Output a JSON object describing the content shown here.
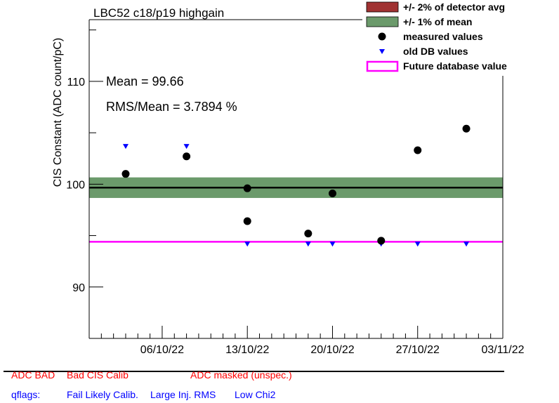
{
  "chart_data": {
    "type": "scatter",
    "title": "LBC52 c18/p19 highgain",
    "ylabel": "CIS Constant (ADC count/pC)",
    "xlabel": "",
    "ylim": [
      85.0,
      116.0
    ],
    "y_ticks": [
      90,
      100,
      110
    ],
    "x_ticks": [
      "06/10/22",
      "13/10/22",
      "20/10/22",
      "27/10/22",
      "03/11/22"
    ],
    "x_range": [
      "2022-09-30",
      "2022-11-03"
    ],
    "grid": false,
    "legend_position": "top-right",
    "stats": {
      "mean_label": "Mean = 99.66",
      "rms_label": "RMS/Mean = 3.7894 %"
    },
    "mean": 99.66,
    "band_1pct": [
      98.66,
      100.66
    ],
    "future_db_value": 94.4,
    "series": [
      {
        "name": "measured values",
        "points": [
          {
            "x": "2022-10-03",
            "y": 101.0
          },
          {
            "x": "2022-10-08",
            "y": 102.7
          },
          {
            "x": "2022-10-13",
            "y": 99.6
          },
          {
            "x": "2022-10-13",
            "y": 96.4
          },
          {
            "x": "2022-10-18",
            "y": 95.2
          },
          {
            "x": "2022-10-20",
            "y": 99.1
          },
          {
            "x": "2022-10-24",
            "y": 94.5
          },
          {
            "x": "2022-10-27",
            "y": 103.3
          },
          {
            "x": "2022-10-31",
            "y": 105.4
          }
        ]
      },
      {
        "name": "old DB values",
        "points": [
          {
            "x": "2022-10-03",
            "y": 103.7
          },
          {
            "x": "2022-10-08",
            "y": 103.7
          },
          {
            "x": "2022-10-13",
            "y": 94.2
          },
          {
            "x": "2022-10-18",
            "y": 94.2
          },
          {
            "x": "2022-10-20",
            "y": 94.2
          },
          {
            "x": "2022-10-24",
            "y": 94.2
          },
          {
            "x": "2022-10-27",
            "y": 94.2
          },
          {
            "x": "2022-10-31",
            "y": 94.2
          }
        ]
      }
    ],
    "legend": [
      {
        "label": "+/- 2% of detector avg",
        "kind": "box",
        "color": "#a03232"
      },
      {
        "label": "+/- 1% of mean",
        "kind": "box",
        "color": "#6b9a6b"
      },
      {
        "label": "measured values",
        "kind": "dot",
        "color": "#000000"
      },
      {
        "label": "old DB values",
        "kind": "triangle",
        "color": "#0000ff"
      },
      {
        "label": "Future database value",
        "kind": "line",
        "color": "#ff00ff"
      }
    ]
  },
  "flags": {
    "adc_bad": "ADC BAD",
    "bad_cis_calib": "Bad CIS Calib",
    "adc_masked": "ADC masked (unspec.)",
    "qflags": "qflags:",
    "fail_likely_calib": "Fail Likely Calib.",
    "large_inj_rms": "Large Inj. RMS",
    "low_chi2": "Low Chi2"
  }
}
